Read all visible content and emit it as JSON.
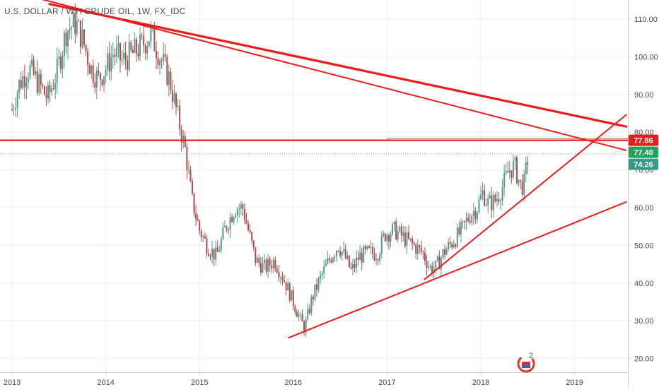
{
  "chart_title": "U.S. DOLLAR / WTI CRUDE OIL, 1W, FX_IDC",
  "watermark_count": "2",
  "colors": {
    "up": "#4f9c8c",
    "down": "#b34a4a",
    "trendline": "#ee1c1c",
    "price_line": "#4ea99a",
    "level_line": "#b06a2a",
    "badge_red": "#ee1c1c",
    "badge_green": "#22a35a",
    "badge_teal": "#3a9a8a",
    "axis_text": "#4a4a4a",
    "grid": "#eceef1"
  },
  "chart_data": {
    "type": "candlestick",
    "title": "U.S. DOLLAR / WTI CRUDE OIL, 1W, FX_IDC",
    "x_ticks": [
      "2013",
      "2014",
      "2015",
      "2016",
      "2017",
      "2018",
      "2019"
    ],
    "y_ticks": [
      "110.00",
      "100.00",
      "90.00",
      "80.00",
      "70.00",
      "60.00",
      "50.00",
      "40.00",
      "30.00",
      "20.00"
    ],
    "ylim": [
      17,
      113
    ],
    "xlim": [
      2013.0,
      2019.55
    ],
    "grid": true,
    "price_path": [
      [
        2013.0,
        86
      ],
      [
        2013.08,
        93
      ],
      [
        2013.18,
        97
      ],
      [
        2013.28,
        93
      ],
      [
        2013.38,
        89
      ],
      [
        2013.48,
        96
      ],
      [
        2013.58,
        107
      ],
      [
        2013.68,
        109
      ],
      [
        2013.76,
        104
      ],
      [
        2013.84,
        97
      ],
      [
        2013.92,
        94
      ],
      [
        2014.0,
        97
      ],
      [
        2014.08,
        101
      ],
      [
        2014.18,
        99
      ],
      [
        2014.3,
        101
      ],
      [
        2014.42,
        104
      ],
      [
        2014.48,
        106
      ],
      [
        2014.58,
        100
      ],
      [
        2014.68,
        94
      ],
      [
        2014.76,
        85
      ],
      [
        2014.85,
        75
      ],
      [
        2014.92,
        62
      ],
      [
        2015.0,
        54
      ],
      [
        2015.08,
        50
      ],
      [
        2015.18,
        47
      ],
      [
        2015.28,
        55
      ],
      [
        2015.38,
        60
      ],
      [
        2015.46,
        60
      ],
      [
        2015.52,
        54
      ],
      [
        2015.6,
        46
      ],
      [
        2015.7,
        44
      ],
      [
        2015.8,
        46
      ],
      [
        2015.9,
        41
      ],
      [
        2016.0,
        35
      ],
      [
        2016.08,
        30
      ],
      [
        2016.12,
        28
      ],
      [
        2016.2,
        36
      ],
      [
        2016.3,
        42
      ],
      [
        2016.4,
        47
      ],
      [
        2016.48,
        50
      ],
      [
        2016.55,
        47
      ],
      [
        2016.62,
        43
      ],
      [
        2016.7,
        47
      ],
      [
        2016.8,
        48
      ],
      [
        2016.9,
        48
      ],
      [
        2016.98,
        53
      ],
      [
        2017.08,
        54
      ],
      [
        2017.18,
        52
      ],
      [
        2017.28,
        50
      ],
      [
        2017.38,
        48
      ],
      [
        2017.46,
        44
      ],
      [
        2017.52,
        44
      ],
      [
        2017.6,
        48
      ],
      [
        2017.7,
        51
      ],
      [
        2017.8,
        54
      ],
      [
        2017.88,
        58
      ],
      [
        2017.96,
        60
      ],
      [
        2018.02,
        64
      ],
      [
        2018.08,
        61
      ],
      [
        2018.16,
        62
      ],
      [
        2018.24,
        66
      ],
      [
        2018.3,
        70
      ],
      [
        2018.36,
        71
      ],
      [
        2018.42,
        66
      ],
      [
        2018.46,
        66
      ],
      [
        2018.5,
        73
      ],
      [
        2018.51,
        74.26
      ]
    ],
    "price_lines": [
      {
        "value": 77.86,
        "label": "77.86",
        "style": "red-horizontal"
      },
      {
        "value": 77.4,
        "label": "77.40",
        "style": "green"
      },
      {
        "value": 74.26,
        "label": "74.26",
        "style": "teal-last-price"
      }
    ],
    "level_segment": {
      "value": 77.4,
      "x_start": 2017.0,
      "x_end": 2019.55
    },
    "trendlines": [
      {
        "x1": 2013.4,
        "y1": 114,
        "x2": 2019.55,
        "y2": 81.5,
        "weight": "thick"
      },
      {
        "x1": 2013.2,
        "y1": 116,
        "x2": 2019.55,
        "y2": 75.2,
        "weight": "thin"
      },
      {
        "x1": 2015.95,
        "y1": 25.5,
        "x2": 2019.55,
        "y2": 61.5,
        "weight": "thin"
      },
      {
        "x1": 2017.4,
        "y1": 41.0,
        "x2": 2019.55,
        "y2": 84.6,
        "weight": "thin"
      }
    ]
  }
}
